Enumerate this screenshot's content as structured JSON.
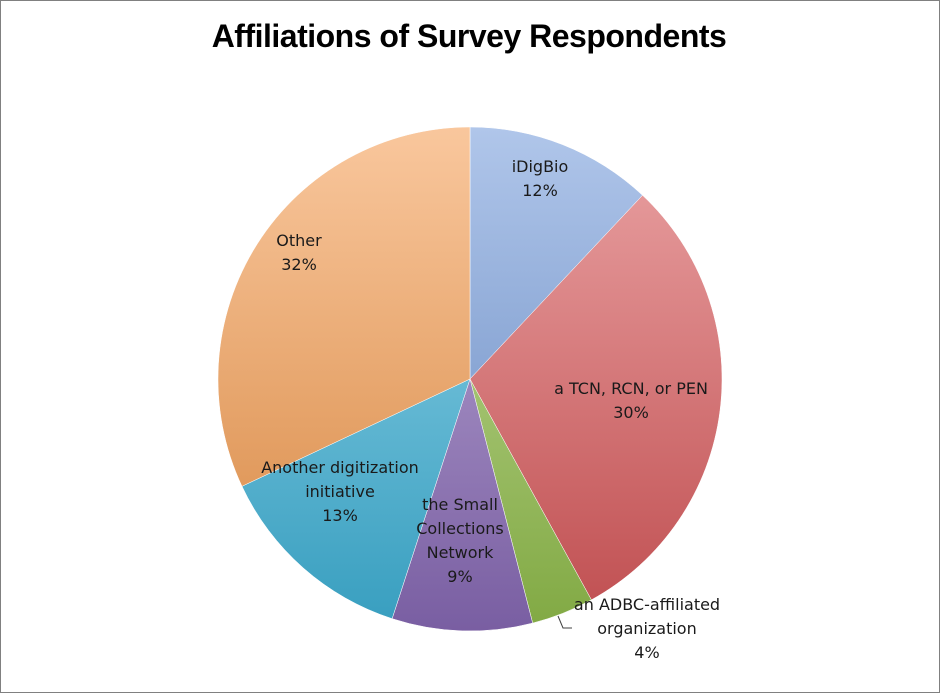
{
  "chart_data": {
    "type": "pie",
    "title": "Affiliations of Survey Respondents",
    "slices": [
      {
        "label_lines": [
          "iDigBio"
        ],
        "pct_label": "12%",
        "value": 12,
        "color": "#6f97d8"
      },
      {
        "label_lines": [
          "a TCN, RCN, or PEN"
        ],
        "pct_label": "30%",
        "value": 30,
        "color": "#d9585a"
      },
      {
        "label_lines": [
          "an ADBC-affiliated",
          "organization"
        ],
        "pct_label": "4%",
        "value": 4,
        "color": "#93c04c"
      },
      {
        "label_lines": [
          "the Small",
          "Collections",
          "Network"
        ],
        "pct_label": "9%",
        "value": 9,
        "color": "#8a6bb8"
      },
      {
        "label_lines": [
          "Another digitization",
          "initiative"
        ],
        "pct_label": "13%",
        "value": 13,
        "color": "#3fb3d9"
      },
      {
        "label_lines": [
          "Other"
        ],
        "pct_label": "32%",
        "value": 32,
        "color": "#f49a4c"
      }
    ]
  }
}
